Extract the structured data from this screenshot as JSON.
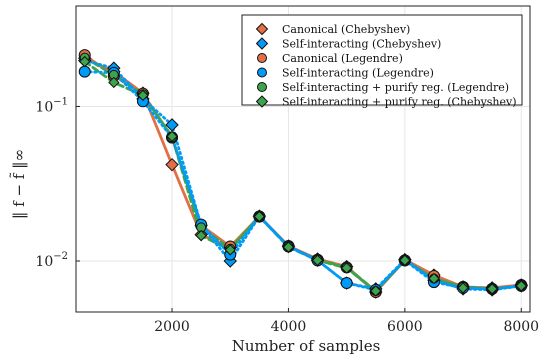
{
  "chart_data": {
    "type": "line",
    "title": "",
    "xlabel": "Number of samples",
    "ylabel": "‖ f − f̃ ‖∞",
    "xlim": [
      350,
      8150
    ],
    "ylim_log10": [
      -2.33,
      -0.35
    ],
    "y_scale": "log",
    "grid": true,
    "legend_position": "top-right",
    "x_ticks": [
      {
        "value": 2000,
        "label": "2000"
      },
      {
        "value": 4000,
        "label": "4000"
      },
      {
        "value": 6000,
        "label": "6000"
      },
      {
        "value": 8000,
        "label": "8000"
      }
    ],
    "y_ticks": [
      {
        "value": 0.01,
        "base": "10",
        "exp": "−2"
      },
      {
        "value": 0.1,
        "base": "10",
        "exp": "−1"
      }
    ],
    "x": [
      500,
      1000,
      1500,
      2000,
      2500,
      3000,
      3500,
      4000,
      4500,
      5000,
      5500,
      6000,
      6500,
      7000,
      7500,
      8000
    ],
    "series": [
      {
        "name": "Canonical (Chebyshev)",
        "color": "#e26f46",
        "marker": "diamond",
        "line": "solid",
        "values": [
          0.205,
          0.168,
          0.122,
          0.042,
          0.0148,
          0.0122,
          0.0195,
          0.0125,
          0.0103,
          0.0092,
          0.0063,
          0.0102,
          0.0081,
          0.0068,
          0.0067,
          0.007
        ]
      },
      {
        "name": "Self-interacting (Chebyshev)",
        "color": "#009af9",
        "marker": "diamond",
        "line": "dotted",
        "values": [
          0.198,
          0.177,
          0.112,
          0.076,
          0.017,
          0.01,
          0.0195,
          0.0124,
          0.0101,
          0.0072,
          0.0066,
          0.0102,
          0.0075,
          0.0066,
          0.0065,
          0.0069
        ]
      },
      {
        "name": "Canonical (Legendre)",
        "color": "#e26f46",
        "marker": "circle",
        "line": "solid",
        "values": [
          0.215,
          0.158,
          0.121,
          0.063,
          0.017,
          0.0124,
          0.0194,
          0.0125,
          0.0102,
          0.0091,
          0.0063,
          0.0101,
          0.008,
          0.0068,
          0.0066,
          0.007
        ]
      },
      {
        "name": "Self-interacting (Legendre)",
        "color": "#009af9",
        "marker": "circle",
        "line": "dotted",
        "values": [
          0.168,
          0.165,
          0.108,
          0.063,
          0.0172,
          0.011,
          0.0194,
          0.0124,
          0.0101,
          0.0072,
          0.0065,
          0.0101,
          0.0073,
          0.0067,
          0.0066,
          0.0069
        ]
      },
      {
        "name": "Self-interacting + purify reg. (Legendre)",
        "color": "#3da44d",
        "marker": "circle",
        "line": "dashed",
        "values": [
          0.207,
          0.16,
          0.12,
          0.063,
          0.0165,
          0.012,
          0.0194,
          0.0124,
          0.0102,
          0.0091,
          0.0064,
          0.0101,
          0.0077,
          0.0068,
          0.0066,
          0.0069
        ]
      },
      {
        "name": "Self-interacting + purify reg. (Chebyshev)",
        "color": "#3da44d",
        "marker": "diamond",
        "line": "dashed",
        "values": [
          0.195,
          0.143,
          0.118,
          0.064,
          0.0146,
          0.0118,
          0.0194,
          0.0123,
          0.0101,
          0.009,
          0.0064,
          0.0101,
          0.0077,
          0.0067,
          0.0066,
          0.0069
        ]
      }
    ]
  }
}
